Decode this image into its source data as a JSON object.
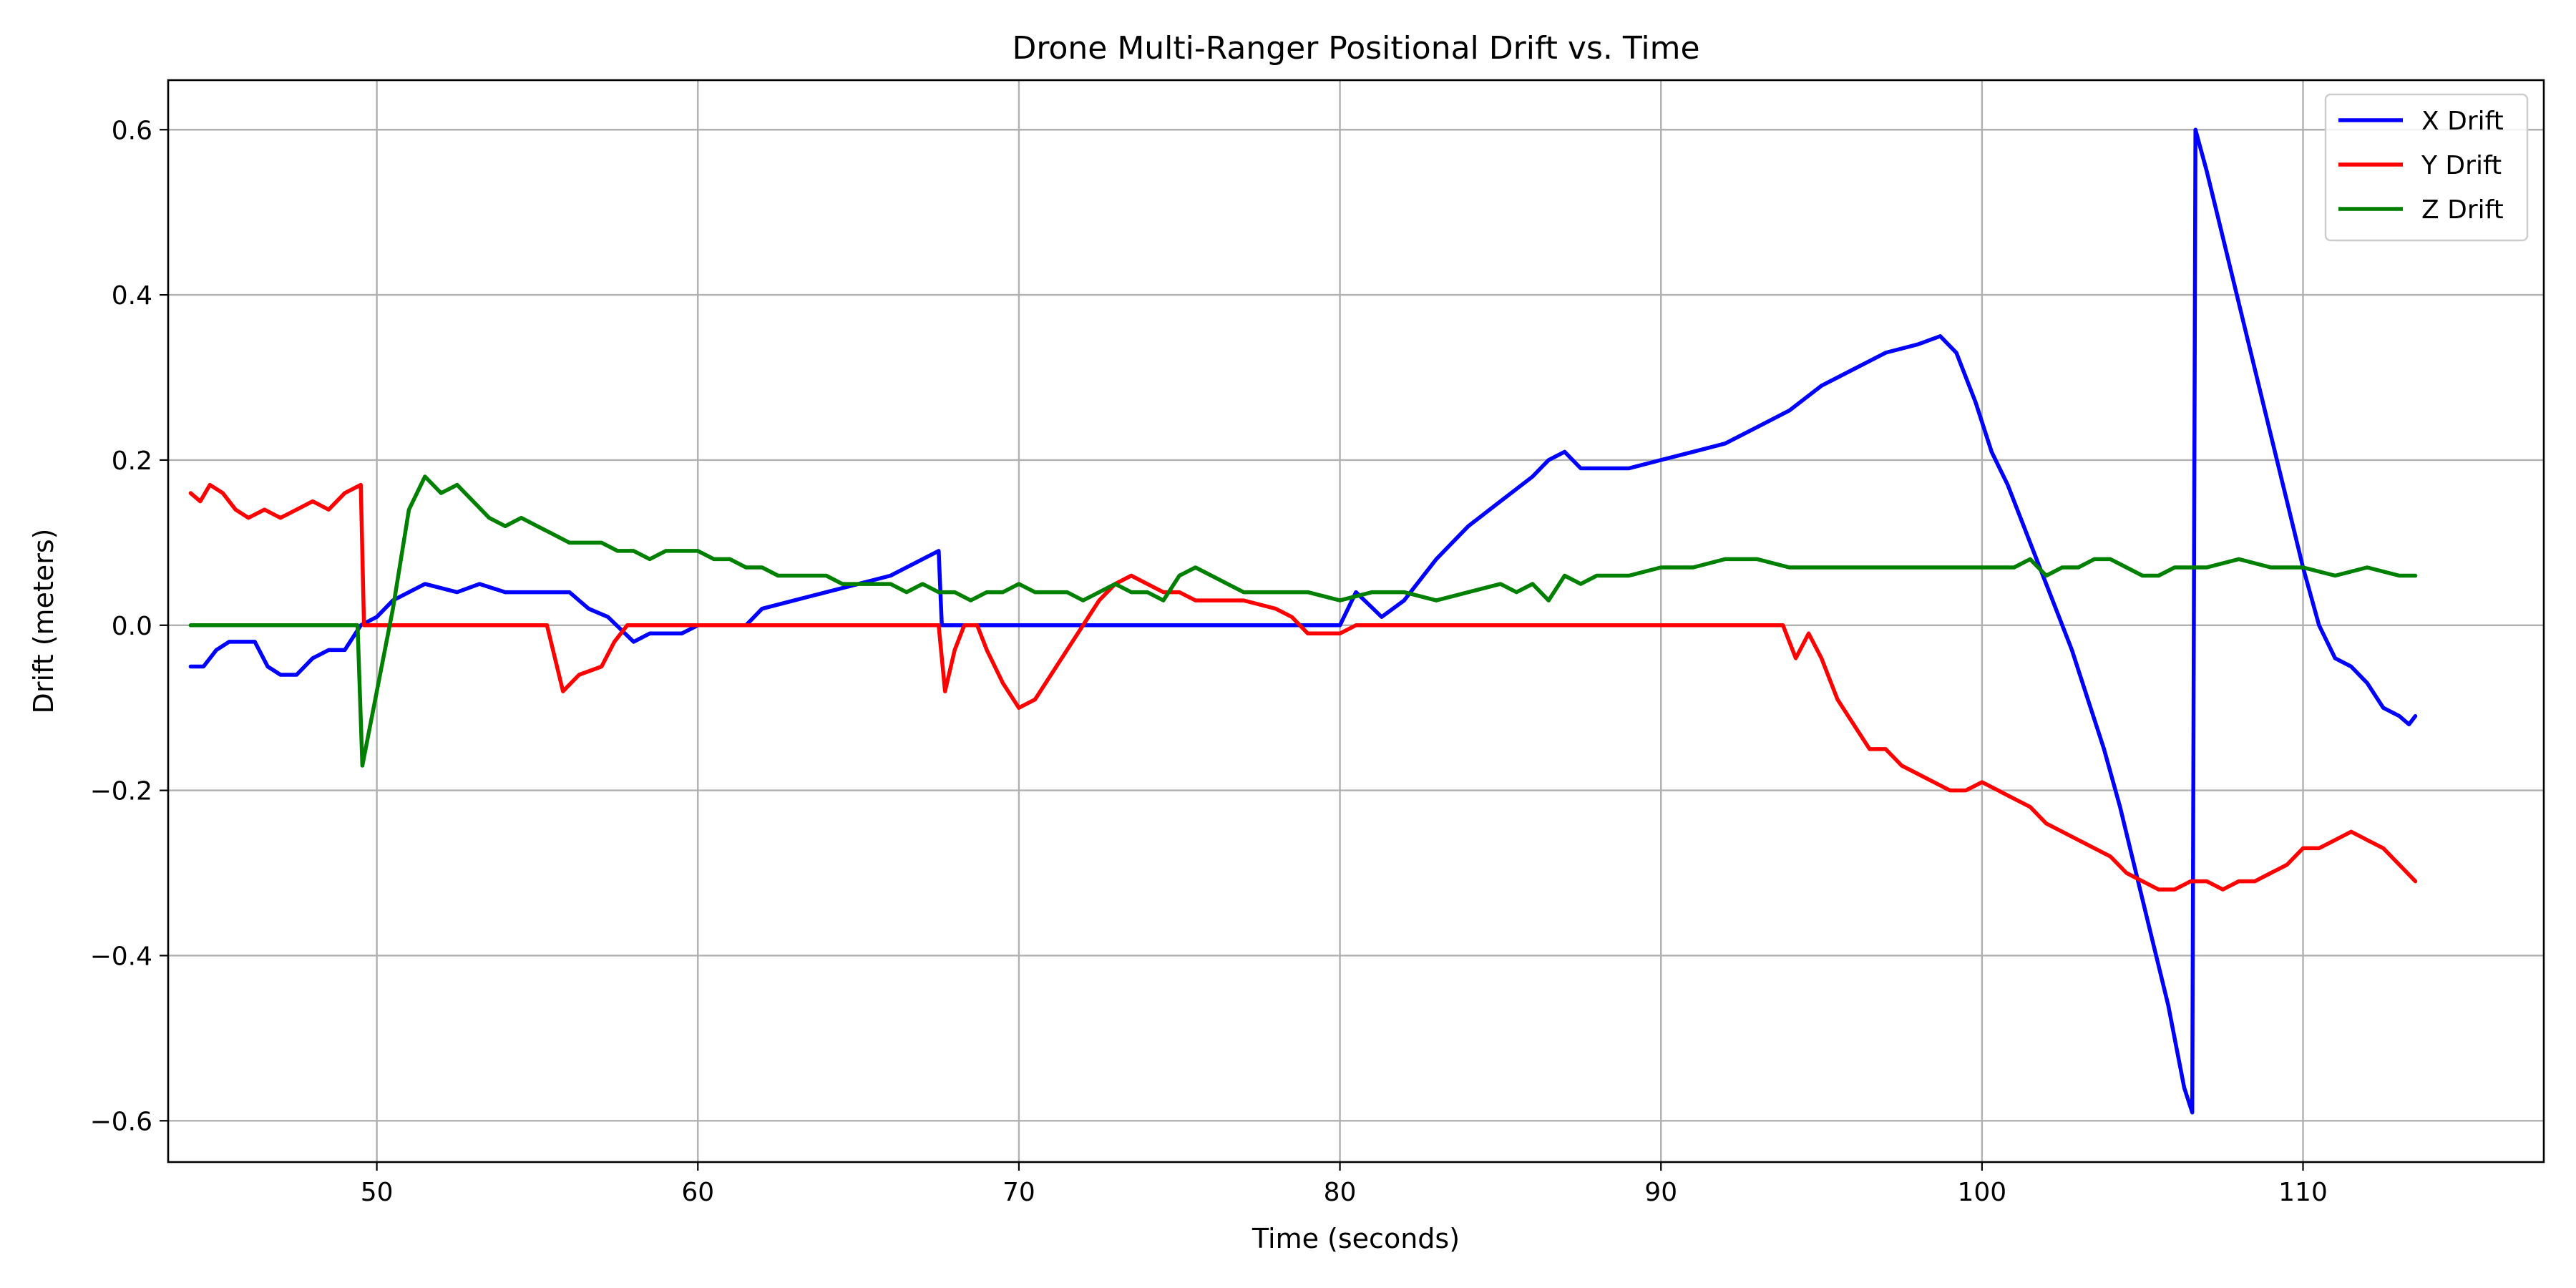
{
  "chart_data": {
    "type": "line",
    "title": "Drone Multi-Ranger Positional Drift vs. Time",
    "xlabel": "Time (seconds)",
    "ylabel": "Drift (meters)",
    "xlim": [
      43.5,
      117.5
    ],
    "ylim": [
      -0.65,
      0.66
    ],
    "xticks": [
      50,
      60,
      70,
      80,
      90,
      100,
      110
    ],
    "xtick_labels": [
      "50",
      "60",
      "70",
      "80",
      "90",
      "100",
      "110"
    ],
    "yticks": [
      -0.6,
      -0.4,
      -0.2,
      0.0,
      0.2,
      0.4,
      0.6
    ],
    "ytick_labels": [
      "−0.6",
      "−0.4",
      "−0.2",
      "0.0",
      "0.2",
      "0.4",
      "0.6"
    ],
    "grid": true,
    "legend_position": "top-right",
    "series": [
      {
        "name": "X Drift",
        "color": "#0000ff",
        "points": [
          [
            44.2,
            -0.05
          ],
          [
            44.6,
            -0.05
          ],
          [
            45.0,
            -0.03
          ],
          [
            45.4,
            -0.02
          ],
          [
            45.8,
            -0.02
          ],
          [
            46.2,
            -0.02
          ],
          [
            46.6,
            -0.05
          ],
          [
            47.0,
            -0.06
          ],
          [
            47.5,
            -0.06
          ],
          [
            48.0,
            -0.04
          ],
          [
            48.5,
            -0.03
          ],
          [
            49.0,
            -0.03
          ],
          [
            49.5,
            0.0
          ],
          [
            50.0,
            0.01
          ],
          [
            50.5,
            0.03
          ],
          [
            51.0,
            0.04
          ],
          [
            51.5,
            0.05
          ],
          [
            52.5,
            0.04
          ],
          [
            53.2,
            0.05
          ],
          [
            54.0,
            0.04
          ],
          [
            55.0,
            0.04
          ],
          [
            56.0,
            0.04
          ],
          [
            56.6,
            0.02
          ],
          [
            57.2,
            0.01
          ],
          [
            58.0,
            -0.02
          ],
          [
            58.5,
            -0.01
          ],
          [
            59.5,
            -0.01
          ],
          [
            60.0,
            0.0
          ],
          [
            61.5,
            0.0
          ],
          [
            62.0,
            0.02
          ],
          [
            63.0,
            0.03
          ],
          [
            64.0,
            0.04
          ],
          [
            65.0,
            0.05
          ],
          [
            66.0,
            0.06
          ],
          [
            67.0,
            0.08
          ],
          [
            67.5,
            0.09
          ],
          [
            67.6,
            0.0
          ],
          [
            70.0,
            0.0
          ],
          [
            75.0,
            0.0
          ],
          [
            80.0,
            0.0
          ],
          [
            80.5,
            0.04
          ],
          [
            81.3,
            0.01
          ],
          [
            82.0,
            0.03
          ],
          [
            83.0,
            0.08
          ],
          [
            84.0,
            0.12
          ],
          [
            85.0,
            0.15
          ],
          [
            86.0,
            0.18
          ],
          [
            86.5,
            0.2
          ],
          [
            87.0,
            0.21
          ],
          [
            87.5,
            0.19
          ],
          [
            89.0,
            0.19
          ],
          [
            90.0,
            0.2
          ],
          [
            91.0,
            0.21
          ],
          [
            92.0,
            0.22
          ],
          [
            93.0,
            0.24
          ],
          [
            94.0,
            0.26
          ],
          [
            95.0,
            0.29
          ],
          [
            96.0,
            0.31
          ],
          [
            97.0,
            0.33
          ],
          [
            98.0,
            0.34
          ],
          [
            98.7,
            0.35
          ],
          [
            99.2,
            0.33
          ],
          [
            99.8,
            0.27
          ],
          [
            100.3,
            0.21
          ],
          [
            100.8,
            0.17
          ],
          [
            101.3,
            0.12
          ],
          [
            101.8,
            0.07
          ],
          [
            102.3,
            0.02
          ],
          [
            102.8,
            -0.03
          ],
          [
            103.3,
            -0.09
          ],
          [
            103.8,
            -0.15
          ],
          [
            104.3,
            -0.22
          ],
          [
            104.8,
            -0.3
          ],
          [
            105.3,
            -0.38
          ],
          [
            105.8,
            -0.46
          ],
          [
            106.3,
            -0.56
          ],
          [
            106.55,
            -0.59
          ],
          [
            106.65,
            0.6
          ],
          [
            107.0,
            0.55
          ],
          [
            107.5,
            0.47
          ],
          [
            108.0,
            0.39
          ],
          [
            108.5,
            0.31
          ],
          [
            109.0,
            0.23
          ],
          [
            109.5,
            0.15
          ],
          [
            110.0,
            0.07
          ],
          [
            110.5,
            0.0
          ],
          [
            111.0,
            -0.04
          ],
          [
            111.5,
            -0.05
          ],
          [
            112.0,
            -0.07
          ],
          [
            112.5,
            -0.1
          ],
          [
            113.0,
            -0.11
          ],
          [
            113.3,
            -0.12
          ],
          [
            113.5,
            -0.11
          ]
        ]
      },
      {
        "name": "Y Drift",
        "color": "#ff0000",
        "points": [
          [
            44.2,
            0.16
          ],
          [
            44.5,
            0.15
          ],
          [
            44.8,
            0.17
          ],
          [
            45.2,
            0.16
          ],
          [
            45.6,
            0.14
          ],
          [
            46.0,
            0.13
          ],
          [
            46.5,
            0.14
          ],
          [
            47.0,
            0.13
          ],
          [
            47.5,
            0.14
          ],
          [
            48.0,
            0.15
          ],
          [
            48.5,
            0.14
          ],
          [
            49.0,
            0.16
          ],
          [
            49.5,
            0.17
          ],
          [
            49.6,
            0.0
          ],
          [
            50.0,
            0.0
          ],
          [
            52.0,
            0.0
          ],
          [
            55.3,
            0.0
          ],
          [
            55.8,
            -0.08
          ],
          [
            56.3,
            -0.06
          ],
          [
            57.0,
            -0.05
          ],
          [
            57.4,
            -0.02
          ],
          [
            57.8,
            0.0
          ],
          [
            60.0,
            0.0
          ],
          [
            65.0,
            0.0
          ],
          [
            67.5,
            0.0
          ],
          [
            67.7,
            -0.08
          ],
          [
            68.0,
            -0.03
          ],
          [
            68.3,
            0.0
          ],
          [
            68.7,
            0.0
          ],
          [
            69.0,
            -0.03
          ],
          [
            69.5,
            -0.07
          ],
          [
            70.0,
            -0.1
          ],
          [
            70.5,
            -0.09
          ],
          [
            71.0,
            -0.06
          ],
          [
            71.5,
            -0.03
          ],
          [
            72.0,
            0.0
          ],
          [
            72.5,
            0.03
          ],
          [
            73.0,
            0.05
          ],
          [
            73.5,
            0.06
          ],
          [
            74.0,
            0.05
          ],
          [
            74.5,
            0.04
          ],
          [
            75.0,
            0.04
          ],
          [
            75.5,
            0.03
          ],
          [
            76.0,
            0.03
          ],
          [
            77.0,
            0.03
          ],
          [
            78.0,
            0.02
          ],
          [
            78.5,
            0.01
          ],
          [
            79.0,
            -0.01
          ],
          [
            80.0,
            -0.01
          ],
          [
            80.5,
            0.0
          ],
          [
            85.0,
            0.0
          ],
          [
            90.0,
            0.0
          ],
          [
            93.8,
            0.0
          ],
          [
            94.2,
            -0.04
          ],
          [
            94.6,
            -0.01
          ],
          [
            95.0,
            -0.04
          ],
          [
            95.5,
            -0.09
          ],
          [
            96.0,
            -0.12
          ],
          [
            96.5,
            -0.15
          ],
          [
            97.0,
            -0.15
          ],
          [
            97.5,
            -0.17
          ],
          [
            98.0,
            -0.18
          ],
          [
            98.5,
            -0.19
          ],
          [
            99.0,
            -0.2
          ],
          [
            99.5,
            -0.2
          ],
          [
            100.0,
            -0.19
          ],
          [
            100.5,
            -0.2
          ],
          [
            101.0,
            -0.21
          ],
          [
            101.5,
            -0.22
          ],
          [
            102.0,
            -0.24
          ],
          [
            102.5,
            -0.25
          ],
          [
            103.0,
            -0.26
          ],
          [
            103.5,
            -0.27
          ],
          [
            104.0,
            -0.28
          ],
          [
            104.5,
            -0.3
          ],
          [
            105.0,
            -0.31
          ],
          [
            105.5,
            -0.32
          ],
          [
            106.0,
            -0.32
          ],
          [
            106.5,
            -0.31
          ],
          [
            107.0,
            -0.31
          ],
          [
            107.5,
            -0.32
          ],
          [
            108.0,
            -0.31
          ],
          [
            108.5,
            -0.31
          ],
          [
            109.0,
            -0.3
          ],
          [
            109.5,
            -0.29
          ],
          [
            110.0,
            -0.27
          ],
          [
            110.5,
            -0.27
          ],
          [
            111.0,
            -0.26
          ],
          [
            111.5,
            -0.25
          ],
          [
            112.0,
            -0.26
          ],
          [
            112.5,
            -0.27
          ],
          [
            113.0,
            -0.29
          ],
          [
            113.5,
            -0.31
          ]
        ]
      },
      {
        "name": "Z Drift",
        "color": "#008000",
        "points": [
          [
            44.2,
            0.0
          ],
          [
            46.0,
            0.0
          ],
          [
            48.0,
            0.0
          ],
          [
            49.4,
            0.0
          ],
          [
            49.55,
            -0.17
          ],
          [
            50.0,
            -0.08
          ],
          [
            50.5,
            0.02
          ],
          [
            51.0,
            0.14
          ],
          [
            51.5,
            0.18
          ],
          [
            52.0,
            0.16
          ],
          [
            52.5,
            0.17
          ],
          [
            53.0,
            0.15
          ],
          [
            53.5,
            0.13
          ],
          [
            54.0,
            0.12
          ],
          [
            54.5,
            0.13
          ],
          [
            55.0,
            0.12
          ],
          [
            55.5,
            0.11
          ],
          [
            56.0,
            0.1
          ],
          [
            56.5,
            0.1
          ],
          [
            57.0,
            0.1
          ],
          [
            57.5,
            0.09
          ],
          [
            58.0,
            0.09
          ],
          [
            58.5,
            0.08
          ],
          [
            59.0,
            0.09
          ],
          [
            59.5,
            0.09
          ],
          [
            60.0,
            0.09
          ],
          [
            60.5,
            0.08
          ],
          [
            61.0,
            0.08
          ],
          [
            61.5,
            0.07
          ],
          [
            62.0,
            0.07
          ],
          [
            62.5,
            0.06
          ],
          [
            63.0,
            0.06
          ],
          [
            63.5,
            0.06
          ],
          [
            64.0,
            0.06
          ],
          [
            64.5,
            0.05
          ],
          [
            65.0,
            0.05
          ],
          [
            65.5,
            0.05
          ],
          [
            66.0,
            0.05
          ],
          [
            66.5,
            0.04
          ],
          [
            67.0,
            0.05
          ],
          [
            67.5,
            0.04
          ],
          [
            68.0,
            0.04
          ],
          [
            68.5,
            0.03
          ],
          [
            69.0,
            0.04
          ],
          [
            69.5,
            0.04
          ],
          [
            70.0,
            0.05
          ],
          [
            70.5,
            0.04
          ],
          [
            71.0,
            0.04
          ],
          [
            71.5,
            0.04
          ],
          [
            72.0,
            0.03
          ],
          [
            72.5,
            0.04
          ],
          [
            73.0,
            0.05
          ],
          [
            73.5,
            0.04
          ],
          [
            74.0,
            0.04
          ],
          [
            74.5,
            0.03
          ],
          [
            75.0,
            0.06
          ],
          [
            75.5,
            0.07
          ],
          [
            76.0,
            0.06
          ],
          [
            76.5,
            0.05
          ],
          [
            77.0,
            0.04
          ],
          [
            78.0,
            0.04
          ],
          [
            79.0,
            0.04
          ],
          [
            80.0,
            0.03
          ],
          [
            81.0,
            0.04
          ],
          [
            82.0,
            0.04
          ],
          [
            83.0,
            0.03
          ],
          [
            84.0,
            0.04
          ],
          [
            85.0,
            0.05
          ],
          [
            85.5,
            0.04
          ],
          [
            86.0,
            0.05
          ],
          [
            86.5,
            0.03
          ],
          [
            87.0,
            0.06
          ],
          [
            87.5,
            0.05
          ],
          [
            88.0,
            0.06
          ],
          [
            89.0,
            0.06
          ],
          [
            90.0,
            0.07
          ],
          [
            91.0,
            0.07
          ],
          [
            92.0,
            0.08
          ],
          [
            93.0,
            0.08
          ],
          [
            94.0,
            0.07
          ],
          [
            95.0,
            0.07
          ],
          [
            96.0,
            0.07
          ],
          [
            97.0,
            0.07
          ],
          [
            98.0,
            0.07
          ],
          [
            99.0,
            0.07
          ],
          [
            100.0,
            0.07
          ],
          [
            101.0,
            0.07
          ],
          [
            101.5,
            0.08
          ],
          [
            102.0,
            0.06
          ],
          [
            102.5,
            0.07
          ],
          [
            103.0,
            0.07
          ],
          [
            103.5,
            0.08
          ],
          [
            104.0,
            0.08
          ],
          [
            104.5,
            0.07
          ],
          [
            105.0,
            0.06
          ],
          [
            105.5,
            0.06
          ],
          [
            106.0,
            0.07
          ],
          [
            107.0,
            0.07
          ],
          [
            108.0,
            0.08
          ],
          [
            109.0,
            0.07
          ],
          [
            110.0,
            0.07
          ],
          [
            111.0,
            0.06
          ],
          [
            112.0,
            0.07
          ],
          [
            113.0,
            0.06
          ],
          [
            113.5,
            0.06
          ]
        ]
      }
    ]
  }
}
